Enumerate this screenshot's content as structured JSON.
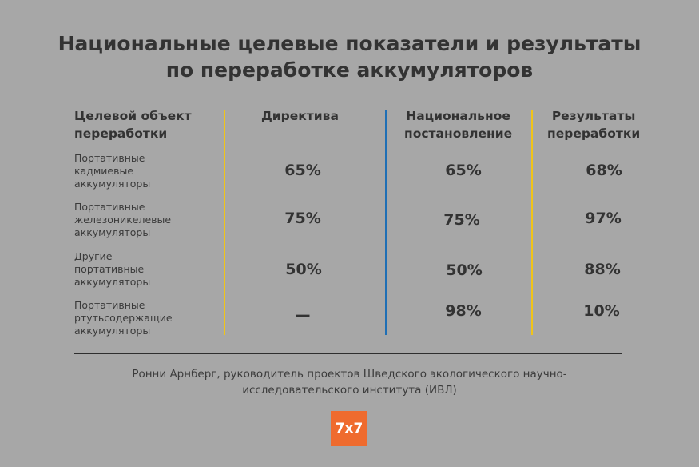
{
  "title": {
    "line1": "Национальные целевые показатели и результаты",
    "line2": "по переработке аккумуляторов"
  },
  "columns": {
    "object": {
      "line1": "Целевой объект",
      "line2": "переработки"
    },
    "directive": {
      "line1": "Директива"
    },
    "national": {
      "line1": "Национальное",
      "line2": "постановление"
    },
    "results": {
      "line1": "Результаты",
      "line2": "переработки"
    }
  },
  "rows": [
    {
      "label": [
        "Портативные",
        "кадмиевые",
        "аккумуляторы"
      ],
      "directive": "65%",
      "national": "65%",
      "result": "68%"
    },
    {
      "label": [
        "Портативные",
        "железоникелевые",
        "аккумуляторы"
      ],
      "directive": "75%",
      "national": "75%",
      "result": "97%"
    },
    {
      "label": [
        "Другие",
        "портативные",
        "аккумуляторы"
      ],
      "directive": "50%",
      "national": "50%",
      "result": "88%"
    },
    {
      "label": [
        "Портативные",
        "ртутьсодержащие",
        "аккумуляторы"
      ],
      "directive": "—",
      "national": "98%",
      "result": "10%"
    }
  ],
  "source": {
    "line1": "Ронни Арнберг, руководитель проектов Шведского экологического научно-",
    "line2": "исследовательского института (ИВЛ)"
  },
  "logo": {
    "text": "7x7"
  },
  "colors": {
    "background": "#a7a7a7",
    "yellow_divider": "#f0c419",
    "blue_divider": "#1f6fb5",
    "logo_bg": "#ef6b2e"
  }
}
